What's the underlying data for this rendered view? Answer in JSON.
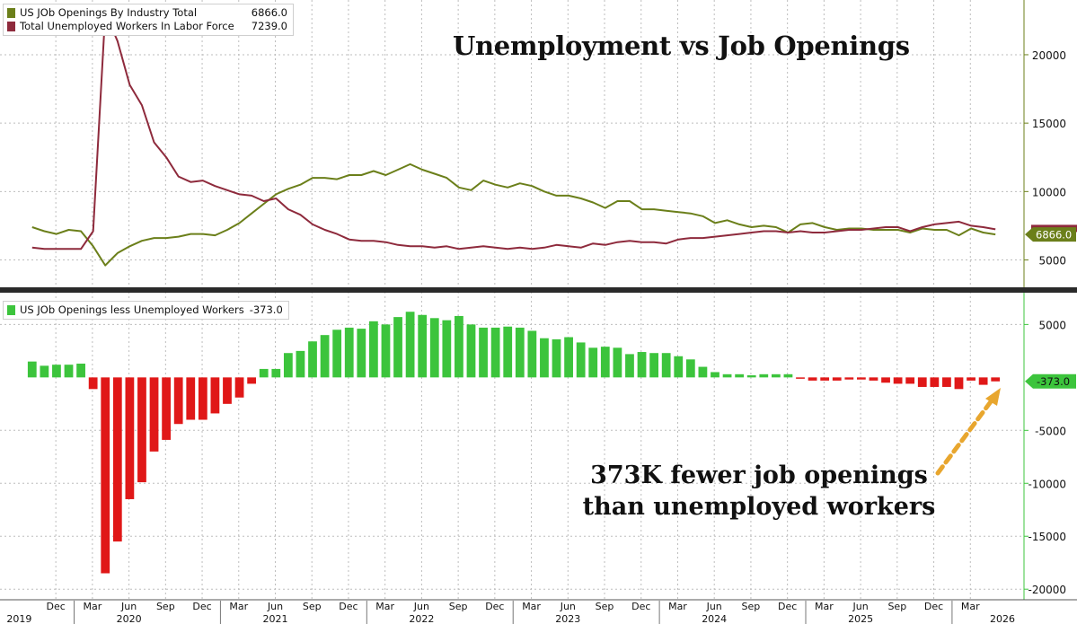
{
  "title": "Unemployment vs Job Openings",
  "annotation": {
    "line1": "373K fewer job openings",
    "line2": "than unemployed workers"
  },
  "colors": {
    "openings": "#6b7f1a",
    "unemployed": "#8e2a3c",
    "positive_bar": "#3cc43c",
    "negative_bar": "#e01818",
    "arrow": "#e8a62e",
    "grid": "#bdbdbd",
    "divider": "#2a2a2a"
  },
  "chart_data": [
    {
      "type": "line",
      "panel": "top",
      "legend_placement": "top-left",
      "grid": true,
      "ylim": [
        3000,
        24000
      ],
      "yticks": [
        5000,
        10000,
        15000,
        20000
      ],
      "x_start": "2019-10",
      "series": [
        {
          "name": "US JOb Openings By Industry Total",
          "last_value": "6866.0",
          "color": "#6b7f1a",
          "values": [
            7400,
            7100,
            6900,
            7200,
            7100,
            6000,
            4600,
            5500,
            6000,
            6400,
            6600,
            6600,
            6700,
            6900,
            6900,
            6800,
            7200,
            7700,
            8400,
            9100,
            9800,
            10200,
            10500,
            11000,
            11000,
            10900,
            11200,
            11200,
            11500,
            11200,
            11600,
            12000,
            11600,
            11300,
            11000,
            10300,
            10100,
            10800,
            10500,
            10300,
            10600,
            10400,
            10000,
            9700,
            9700,
            9500,
            9200,
            8800,
            9300,
            9300,
            8700,
            8700,
            8600,
            8500,
            8400,
            8200,
            7700,
            7900,
            7600,
            7400,
            7500,
            7400,
            7000,
            7600,
            7700,
            7400,
            7200,
            7300,
            7300,
            7200,
            7200,
            7200,
            7000,
            7300,
            7200,
            7200,
            6800,
            7300,
            7000,
            6866
          ]
        },
        {
          "name": "Total Unemployed Workers In Labor Force",
          "last_value": "7239.0",
          "color": "#8e2a3c",
          "values": [
            5900,
            5800,
            5800,
            5800,
            5800,
            7100,
            23100,
            21000,
            17800,
            16300,
            13600,
            12500,
            11100,
            10700,
            10800,
            10400,
            10100,
            9800,
            9700,
            9300,
            9500,
            8700,
            8300,
            7600,
            7200,
            6900,
            6500,
            6400,
            6400,
            6300,
            6100,
            6000,
            6000,
            5900,
            6000,
            5800,
            5900,
            6000,
            5900,
            5800,
            5900,
            5800,
            5900,
            6100,
            6000,
            5900,
            6200,
            6100,
            6300,
            6400,
            6300,
            6300,
            6200,
            6500,
            6600,
            6600,
            6700,
            6800,
            6900,
            7000,
            7100,
            7100,
            7000,
            7100,
            7000,
            7000,
            7100,
            7200,
            7200,
            7300,
            7400,
            7400,
            7100,
            7400,
            7600,
            7700,
            7800,
            7500,
            7400,
            7239
          ]
        }
      ],
      "x_axis": {
        "month_labels": [
          {
            "index": 2,
            "label": "Dec"
          },
          {
            "index": 5,
            "label": "Mar"
          },
          {
            "index": 8,
            "label": "Jun"
          },
          {
            "index": 11,
            "label": "Sep"
          },
          {
            "index": 14,
            "label": "Dec"
          },
          {
            "index": 17,
            "label": "Mar"
          },
          {
            "index": 20,
            "label": "Jun"
          },
          {
            "index": 23,
            "label": "Sep"
          },
          {
            "index": 26,
            "label": "Dec"
          },
          {
            "index": 29,
            "label": "Mar"
          },
          {
            "index": 32,
            "label": "Jun"
          },
          {
            "index": 35,
            "label": "Sep"
          },
          {
            "index": 38,
            "label": "Dec"
          },
          {
            "index": 41,
            "label": "Mar"
          },
          {
            "index": 44,
            "label": "Jun"
          },
          {
            "index": 47,
            "label": "Sep"
          },
          {
            "index": 50,
            "label": "Dec"
          },
          {
            "index": 53,
            "label": "Mar"
          },
          {
            "index": 56,
            "label": "Jun"
          },
          {
            "index": 59,
            "label": "Sep"
          },
          {
            "index": 62,
            "label": "Dec"
          },
          {
            "index": 65,
            "label": "Mar"
          },
          {
            "index": 68,
            "label": "Jun"
          },
          {
            "index": 71,
            "label": "Sep"
          },
          {
            "index": 74,
            "label": "Dec"
          },
          {
            "index": 77,
            "label": "Mar"
          }
        ],
        "year_labels": [
          {
            "index": -1,
            "label": "2019"
          },
          {
            "index": 8,
            "label": "2020"
          },
          {
            "index": 20,
            "label": "2021"
          },
          {
            "index": 32,
            "label": "2022"
          },
          {
            "index": 44,
            "label": "2023"
          },
          {
            "index": 56,
            "label": "2024"
          },
          {
            "index": 68,
            "label": "2025"
          },
          {
            "index": 80,
            "label": "2026"
          }
        ],
        "year_separators": [
          3,
          15,
          27,
          39,
          51,
          63,
          75
        ]
      }
    },
    {
      "type": "bar",
      "panel": "bottom",
      "legend_placement": "top-left",
      "grid": true,
      "ylim": [
        -21000,
        8000
      ],
      "yticks": [
        5000,
        -5000,
        -10000,
        -15000,
        -20000
      ],
      "series": [
        {
          "name": "US JOb Openings less Unemployed Workers",
          "last_value": "-373.0",
          "values": [
            1500,
            1100,
            1200,
            1200,
            1300,
            -1100,
            -18500,
            -15500,
            -11500,
            -9900,
            -7000,
            -5900,
            -4400,
            -4000,
            -4000,
            -3400,
            -2500,
            -1900,
            -600,
            800,
            800,
            2300,
            2500,
            3400,
            4000,
            4500,
            4700,
            4600,
            5300,
            5000,
            5700,
            6200,
            5900,
            5600,
            5400,
            5800,
            5000,
            4700,
            4700,
            4800,
            4700,
            4400,
            3700,
            3600,
            3800,
            3300,
            2800,
            2900,
            2800,
            2200,
            2400,
            2300,
            2300,
            2000,
            1700,
            1000,
            500,
            300,
            300,
            200,
            300,
            300,
            300,
            -100,
            -300,
            -300,
            -300,
            -200,
            -200,
            -300,
            -500,
            -600,
            -600,
            -900,
            -900,
            -900,
            -1100,
            -300,
            -700,
            -373
          ]
        }
      ]
    }
  ]
}
